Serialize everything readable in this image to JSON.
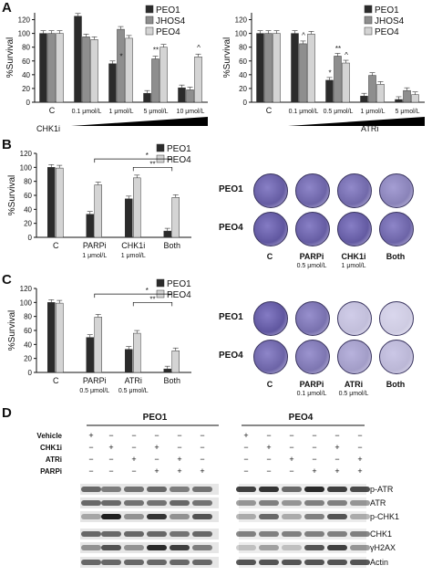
{
  "colors": {
    "peo1": "#2b2b2b",
    "jhos4": "#8e8e8e",
    "peo4": "#d4d4d4"
  },
  "panels": {
    "A": {
      "label": "A"
    },
    "B": {
      "label": "B"
    },
    "C": {
      "label": "C"
    },
    "D": {
      "label": "D"
    }
  },
  "charts": {
    "A1": {
      "ylabel": "%Survival",
      "ticks": [
        0,
        20,
        40,
        60,
        80,
        100,
        120
      ],
      "legend": [
        "PEO1",
        "JHOS4",
        "PEO4"
      ],
      "categories": [
        "C",
        "0.1 μmol/L",
        "1 μmol/L",
        "5 μmol/L",
        "10 μmol/L"
      ],
      "drug": "CHK1i",
      "sig": [
        "*",
        "**",
        "^"
      ]
    },
    "A2": {
      "ylabel": "%Survival",
      "ticks": [
        0,
        20,
        40,
        60,
        80,
        100,
        120
      ],
      "legend": [
        "PEO1",
        "JHOS4",
        "PEO4"
      ],
      "categories": [
        "C",
        "0.1 μmol/L",
        "0.5 μmol/L",
        "1 μmol/L",
        "5 μmol/L"
      ],
      "drug": "ATRi",
      "sig": [
        "^",
        "*",
        "**",
        "^"
      ]
    },
    "B": {
      "ylabel": "%Survival",
      "ticks": [
        0,
        20,
        40,
        60,
        80,
        100,
        120
      ],
      "legend": [
        "PEO1",
        "PEO4"
      ],
      "categories": [
        "C",
        "PARPi",
        "CHK1i",
        "Both"
      ],
      "doses": [
        "1 μmol/L",
        "1 μmol/L"
      ],
      "sig": [
        "*",
        "**"
      ]
    },
    "C": {
      "ylabel": "%Survival",
      "ticks": [
        0,
        20,
        40,
        60,
        80,
        100,
        120
      ],
      "legend": [
        "PEO1",
        "PEO4"
      ],
      "categories": [
        "C",
        "PARPi",
        "ATRi",
        "Both"
      ],
      "doses": [
        "0.5 μmol/L",
        "0.5 μmol/L"
      ],
      "sig": [
        "*",
        "**"
      ]
    }
  },
  "chart_data": [
    {
      "type": "bar",
      "categories": [
        "C",
        "0.1 μmol/L",
        "1 μmol/L",
        "5 μmol/L",
        "10 μmol/L"
      ],
      "series": [
        {
          "name": "PEO1",
          "values": [
            100,
            125,
            56,
            13,
            21
          ]
        },
        {
          "name": "JHOS4",
          "values": [
            100,
            95,
            106,
            63,
            18
          ]
        },
        {
          "name": "PEO4",
          "values": [
            100,
            91,
            93,
            80,
            66
          ]
        }
      ],
      "ylabel": "%Survival",
      "ylim": [
        0,
        130
      ]
    },
    {
      "type": "bar",
      "categories": [
        "C",
        "0.1 μmol/L",
        "0.5 μmol/L",
        "1 μmol/L",
        "5 μmol/L"
      ],
      "series": [
        {
          "name": "PEO1",
          "values": [
            100,
            100,
            32,
            9,
            4
          ]
        },
        {
          "name": "JHOS4",
          "values": [
            100,
            85,
            67,
            39,
            17
          ]
        },
        {
          "name": "PEO4",
          "values": [
            100,
            99,
            57,
            26,
            11
          ]
        }
      ],
      "ylabel": "%Survival",
      "ylim": [
        0,
        130
      ]
    },
    {
      "type": "bar",
      "categories": [
        "C",
        "PARPi",
        "CHK1i",
        "Both"
      ],
      "series": [
        {
          "name": "PEO1",
          "values": [
            100,
            33,
            55,
            9
          ]
        },
        {
          "name": "PEO4",
          "values": [
            99,
            75,
            85,
            57
          ]
        }
      ],
      "ylabel": "%Survival",
      "ylim": [
        0,
        120
      ]
    },
    {
      "type": "bar",
      "categories": [
        "C",
        "PARPi",
        "ATRi",
        "Both"
      ],
      "series": [
        {
          "name": "PEO1",
          "values": [
            100,
            50,
            33,
            5
          ]
        },
        {
          "name": "PEO4",
          "values": [
            99,
            79,
            56,
            31
          ]
        }
      ],
      "ylabel": "%Survival",
      "ylim": [
        0,
        120
      ]
    }
  ],
  "dishesB": {
    "rows": [
      "PEO1",
      "PEO4"
    ],
    "cols": [
      "C",
      "PARPi",
      "CHK1i",
      "Both"
    ],
    "doses": [
      "0.5 μmol/L",
      "1 μmol/L"
    ],
    "density": [
      [
        0.9,
        0.85,
        0.8,
        0.6
      ],
      [
        0.95,
        0.9,
        0.92,
        0.85
      ]
    ]
  },
  "dishesC": {
    "rows": [
      "PEO1",
      "PEO4"
    ],
    "cols": [
      "C",
      "PARPi",
      "ATRi",
      "Both"
    ],
    "doses": [
      "0.1 μmol/L",
      "0.5 μmol/L"
    ],
    "density": [
      [
        0.95,
        0.75,
        0.15,
        0.05
      ],
      [
        0.85,
        0.7,
        0.4,
        0.2
      ]
    ]
  },
  "blot": {
    "cell_lines": [
      "PEO1",
      "PEO4"
    ],
    "conditions": [
      "Vehicle",
      "CHK1i",
      "ATRi",
      "PARPi"
    ],
    "peo1_marks": [
      [
        "+",
        "−",
        "−",
        "−",
        "−",
        "−"
      ],
      [
        "−",
        "+",
        "−",
        "+",
        "−",
        "−"
      ],
      [
        "−",
        "−",
        "+",
        "−",
        "+",
        "−"
      ],
      [
        "−",
        "−",
        "−",
        "+",
        "+",
        "+"
      ]
    ],
    "peo4_marks": [
      [
        "+",
        "−",
        "−",
        "−",
        "−",
        "−"
      ],
      [
        "−",
        "+",
        "−",
        "−",
        "+",
        "−"
      ],
      [
        "−",
        "−",
        "+",
        "−",
        "−",
        "+"
      ],
      [
        "−",
        "−",
        "−",
        "+",
        "+",
        "+"
      ]
    ],
    "proteins": [
      "p-ATR",
      "ATR",
      "p-CHK1",
      "CHK1",
      "γH2AX",
      "Actin"
    ]
  }
}
